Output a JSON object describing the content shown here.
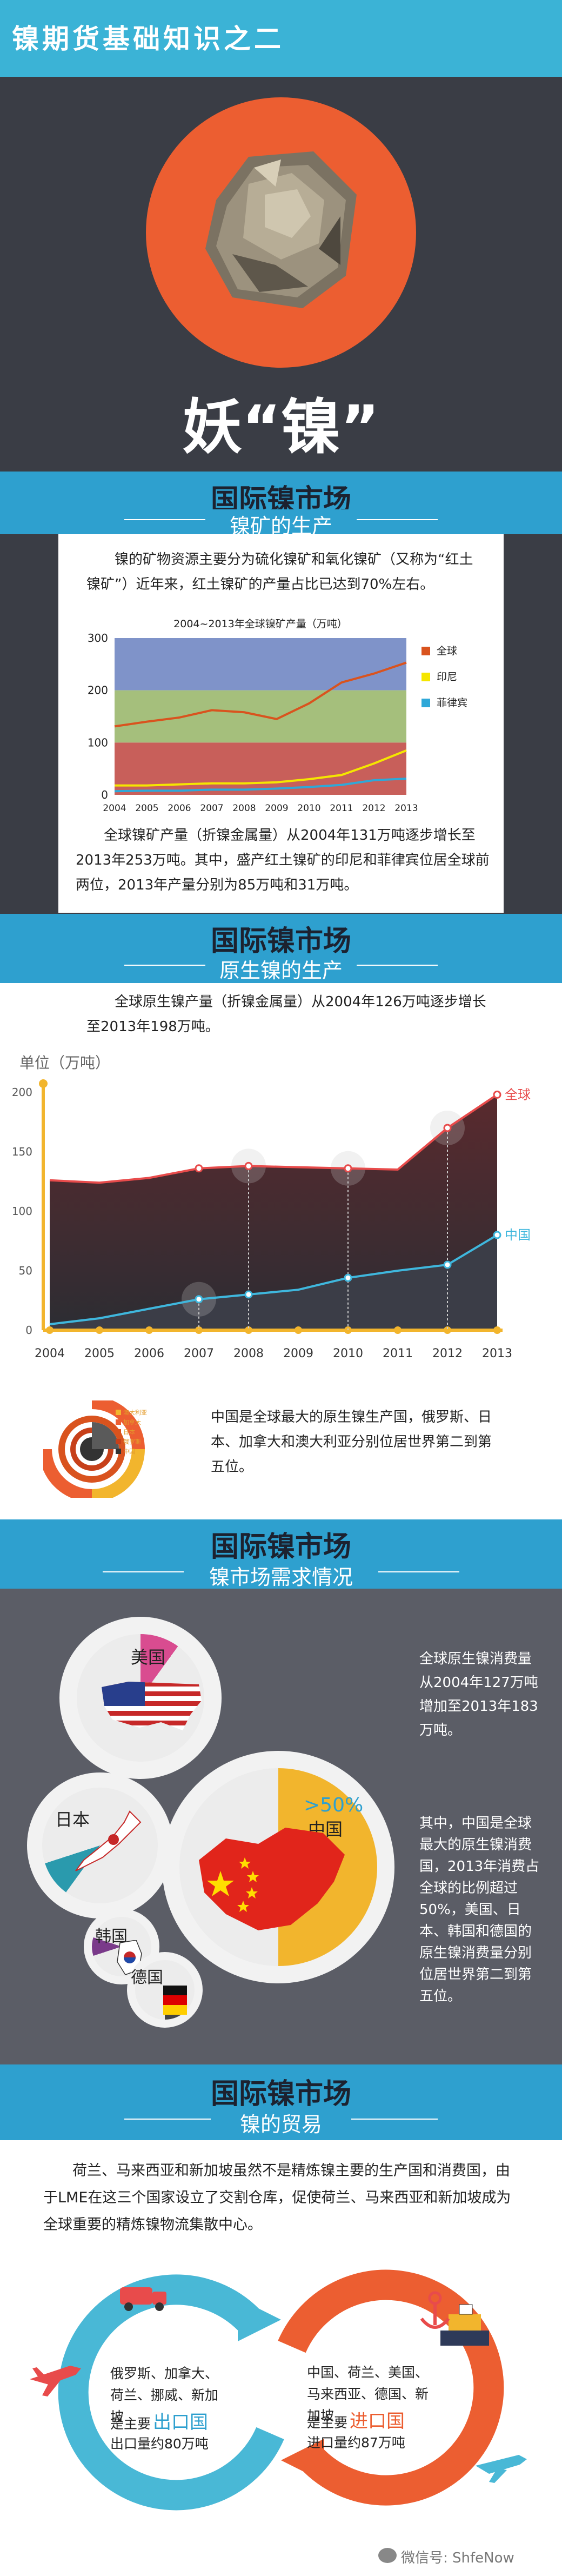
{
  "header": {
    "series_title": "镍期货基础知识之二",
    "main_title": "妖“镍”"
  },
  "colors": {
    "accent_blue": "#49b8d6",
    "banner_blue": "#2ea0cf",
    "orange_red": "#ec5e31",
    "dark_bg": "#3a3d45",
    "global_red": "#e84b4b",
    "china_blue": "#3fb7dd",
    "yellow": "#f2b52d"
  },
  "sections": [
    {
      "title": "国际镍市场",
      "subtitle": "镍矿的生产"
    },
    {
      "title": "国际镍市场",
      "subtitle": "原生镍的生产"
    },
    {
      "title": "国际镍市场",
      "subtitle": "镍市场需求情况"
    },
    {
      "title": "国际镍市场",
      "subtitle": "镍的贸易"
    }
  ],
  "ore": {
    "intro": "镍的矿物资源主要分为硫化镍矿和氧化镍矿（又称为“红土镍矿”）近年来，红土镍矿的产量占比已达到70%左右。",
    "summary": "全球镍矿产量（折镍金属量）从2004年131万吨逐步增长至2013年253万吨。其中，盛产红土镍矿的印尼和菲律宾位居全球前两位，2013年产量分别为85万吨和31万吨。"
  },
  "primary": {
    "intro": "全球原生镍产量（折镍金属量）从2004年126万吨逐步增长至2013年198万吨。",
    "unit_label": "单位（万吨）",
    "pie_legend": [
      "澳大利亚",
      "加拿大",
      "日本",
      "俄罗斯",
      "中国"
    ],
    "note": "中国是全球最大的原生镍生产国，俄罗斯、日本、加拿大和澳大利亚分别位居世界第二到第五位。"
  },
  "demand": {
    "text1": "全球原生镍消费量从2004年127万吨增加至2013年183万吨。",
    "text2": "其中，中国是全球最大的原生镍消费国，2013年消费占全球的比例超过50%，美国、日本、韩国和德国的原生镍消费量分别位居世界第二到第五位。",
    "countries": [
      "美国",
      "日本",
      "中国",
      "韩国",
      "德国"
    ],
    "china_share": ">50%"
  },
  "trade": {
    "intro": "荷兰、马来西亚和新加坡虽然不是精炼镍主要的生产国和消费国，由于LME在这三个国家设立了交割仓库，促使荷兰、马来西亚和新加坡成为全球重要的精炼镍物流集散中心。",
    "export_countries": "俄罗斯、加拿大、荷兰、挪威、新加坡",
    "export_pre": "是主要",
    "export_kw": "出口国",
    "export_vol": "出口量约80万吨",
    "import_countries": "中国、荷兰、美国、马来西亚、德国、新加坡",
    "import_pre": "是主要",
    "import_kw": "进口国",
    "import_vol": "进口量约87万吨"
  },
  "footer": {
    "wechat": "微信号: ShfeNow"
  },
  "chart_data": [
    {
      "type": "area",
      "title": "2004~2013年全球镍矿产量（万吨）",
      "categories": [
        "2004",
        "2005",
        "2006",
        "2007",
        "2008",
        "2009",
        "2010",
        "2011",
        "2012",
        "2013"
      ],
      "ylim": [
        0,
        300
      ],
      "yticks": [
        "0",
        "100",
        "200",
        "300"
      ],
      "series": [
        {
          "name": "全球",
          "values": [
            131,
            140,
            148,
            162,
            158,
            145,
            175,
            215,
            232,
            253
          ],
          "color": "#d9531e"
        },
        {
          "name": "印尼",
          "values": [
            18,
            18,
            20,
            22,
            22,
            24,
            30,
            38,
            60,
            85
          ],
          "color": "#f5e600"
        },
        {
          "name": "菲律宾",
          "values": [
            7,
            8,
            8,
            10,
            10,
            12,
            15,
            19,
            28,
            31
          ],
          "color": "#2fa8d8"
        }
      ],
      "legend": "right"
    },
    {
      "type": "line",
      "categories": [
        "2004",
        "2005",
        "2006",
        "2007",
        "2008",
        "2009",
        "2010",
        "2011",
        "2012",
        "2013"
      ],
      "ylim": [
        0,
        200
      ],
      "yticks": [
        "0",
        "50",
        "100",
        "150",
        "200"
      ],
      "series": [
        {
          "name": "全球",
          "values": [
            126,
            124,
            128,
            136,
            138,
            137,
            136,
            135,
            170,
            198
          ],
          "color": "#e84b4b"
        },
        {
          "name": "中国",
          "values": [
            5,
            10,
            18,
            26,
            30,
            34,
            44,
            50,
            55,
            80
          ],
          "color": "#3fb7dd"
        }
      ]
    }
  ]
}
